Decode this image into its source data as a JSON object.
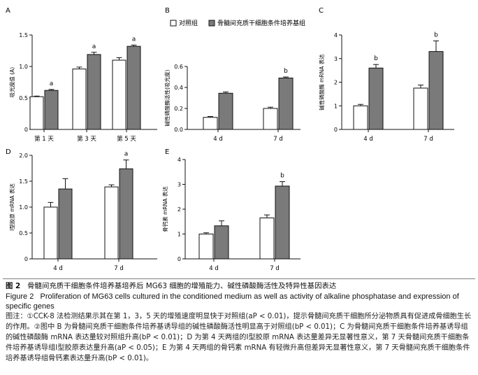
{
  "chart_data": [
    {
      "panel": "A",
      "type": "bar",
      "categories": [
        "第 1 天",
        "第 3 天",
        "第 5 天"
      ],
      "ylabel": "吸光度值 (A)",
      "ylim": [
        0,
        1.5
      ],
      "yticks": [
        "0",
        "0.5",
        "1.0",
        "1.5"
      ],
      "series": [
        {
          "values": [
            0.52,
            0.96,
            1.1
          ],
          "errors": [
            0.01,
            0.03,
            0.04
          ]
        },
        {
          "values": [
            0.62,
            1.19,
            1.32
          ],
          "errors": [
            0.015,
            0.035,
            0.02
          ]
        }
      ],
      "annotations": [
        "a",
        "a",
        "a"
      ]
    },
    {
      "panel": "B",
      "type": "bar",
      "categories": [
        "4 d",
        "7 d"
      ],
      "ylabel": "碱性磷酸酶活性(吸光度)",
      "ylim": [
        0,
        0.6
      ],
      "yticks": [
        "0.0",
        "0.2",
        "0.4",
        "0.6"
      ],
      "series": [
        {
          "values": [
            0.115,
            0.2
          ],
          "errors": [
            0.008,
            0.012
          ]
        },
        {
          "values": [
            0.345,
            0.49
          ],
          "errors": [
            0.012,
            0.01
          ]
        }
      ],
      "annotations": [
        "",
        "b"
      ]
    },
    {
      "panel": "C",
      "type": "bar",
      "categories": [
        "4 d",
        "7 d"
      ],
      "ylabel": "碱性磷酸酶 mRNA 表达",
      "ylim": [
        0,
        4
      ],
      "yticks": [
        "0",
        "1",
        "2",
        "3",
        "4"
      ],
      "series": [
        {
          "values": [
            1.0,
            1.75
          ],
          "errors": [
            0.06,
            0.13
          ]
        },
        {
          "values": [
            2.6,
            3.3
          ],
          "errors": [
            0.15,
            0.45
          ]
        }
      ],
      "annotations": [
        "b",
        "b"
      ]
    },
    {
      "panel": "D",
      "type": "bar",
      "categories": [
        "4 d",
        "7 d"
      ],
      "ylabel": "Ⅰ型胶原 mRNA 表达",
      "ylim": [
        0,
        2.0
      ],
      "yticks": [
        "0",
        "0.5",
        "1.0",
        "1.5",
        "2.0"
      ],
      "series": [
        {
          "values": [
            1.0,
            1.39
          ],
          "errors": [
            0.09,
            0.04
          ]
        },
        {
          "values": [
            1.35,
            1.74
          ],
          "errors": [
            0.2,
            0.17
          ]
        }
      ],
      "annotations": [
        "",
        "a"
      ]
    },
    {
      "panel": "E",
      "type": "bar",
      "categories": [
        "4 d",
        "7 d"
      ],
      "ylabel": "骨钙素 mRNA 表达",
      "ylim": [
        0,
        4
      ],
      "yticks": [
        "0",
        "1",
        "2",
        "3",
        "4"
      ],
      "series": [
        {
          "values": [
            1.0,
            1.65
          ],
          "errors": [
            0.05,
            0.12
          ]
        },
        {
          "values": [
            1.33,
            2.93
          ],
          "errors": [
            0.2,
            0.18
          ]
        }
      ],
      "annotations": [
        "",
        "b"
      ]
    }
  ],
  "legend": [
    "对照组",
    "骨髓间充质干细胞条件培养基组"
  ],
  "colors": {
    "control": "#ffffff",
    "treated": "#7a7a7a",
    "stroke": "#111111"
  },
  "caption": {
    "cn_num": "图 2",
    "cn_text": "骨髓间充质干细胞条件培养基培养后 MG63 细胞的增殖能力、碱性磷酸酶活性及特异性基因表达",
    "en_num": "Figure 2",
    "en_text": "Proliferation of MG63 cells cultured in the conditioned medium as well as activity of alkaline phosphatase and expression of specific genes",
    "note": "图注：①CCK-8 法检测结果示其在第 1，3，5 天的增殖速度明显快于对照组(aP < 0.01)，提示骨髓间充质干细胞所分泌物质具有促进成骨细胞生长的作用。②图中 B 为骨髓间充质干细胞条件培养基诱导组的碱性磷酸酶活性明显高于对照组(bP < 0.01)；C 为骨髓间充质干细胞条件培养基诱导组的碱性磷酸酶 mRNA 表达量较对照组升高(bP < 0.01)；D 为第 4 天两组的Ⅰ型胶原 mRNA 表达量差异无显著性意义，第 7 天骨髓间充质干细胞条件培养基诱导组Ⅰ型胶原表达量升高(aP < 0.05)；E 为第 4 天两组的骨钙素 mRNA 有轻微升高但差异无显著性意义，第 7 天骨髓间充质干细胞条件培养基诱导组骨钙素表达量升高(bP < 0.01)。"
  }
}
